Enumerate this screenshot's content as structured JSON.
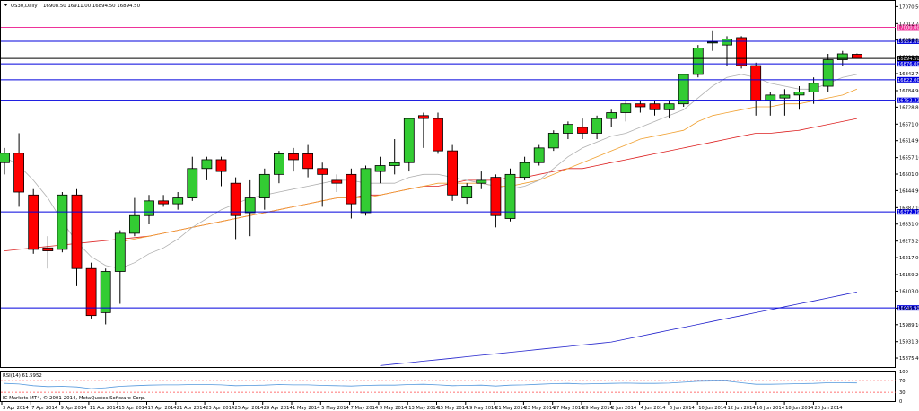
{
  "header": {
    "symbol_text": "US30,Daily",
    "ohlc_text": "16908.50 16911.00 16894.50 16894.50"
  },
  "rsi_panel": {
    "label": "RSI(14) 61.5952",
    "levels": [
      100,
      70,
      30,
      0
    ],
    "level_labels": [
      "100",
      "70",
      "30",
      "0"
    ]
  },
  "footer": {
    "copyright": "IC Markets MT4, © 2001-2014, MetaQuotes Software Corp."
  },
  "colors": {
    "bull": "#33cc33",
    "bear": "#ff0000",
    "ma_fast": "#b0b0b0",
    "ma_mid": "#f0a030",
    "ma_slow": "#dd2222",
    "ma_long": "#2222cc",
    "hline_blue": "#0000dd",
    "hline_magenta": "#ee3399",
    "hline_black": "#000000",
    "rsi": "#5599dd",
    "rsi_level": "#ff4444"
  },
  "chart_data": {
    "type": "candlestick",
    "symbol": "US30",
    "timeframe": "Daily",
    "ylim": [
      15845,
      17090
    ],
    "y_ticks": [
      "17070.50",
      "17012.70",
      "16956.80",
      "16898.90",
      "16842.70",
      "16784.90",
      "16728.80",
      "16671.00",
      "16614.90",
      "16557.10",
      "16501.00",
      "16444.90",
      "16387.10",
      "16331.00",
      "16273.20",
      "16217.00",
      "16159.20",
      "16103.00",
      "16045.20",
      "15989.10",
      "15931.30",
      "15875.40"
    ],
    "x_labels": [
      "3 Apr 2014",
      "7 Apr 2014",
      "9 Apr 2014",
      "11 Apr 2014",
      "15 Apr 2014",
      "17 Apr 2014",
      "21 Apr 2014",
      "23 Apr 2014",
      "25 Apr 2014",
      "29 Apr 2014",
      "1 May 2014",
      "5 May 2014",
      "7 May 2014",
      "9 May 2014",
      "13 May 2014",
      "15 May 2014",
      "19 May 2014",
      "21 May 2014",
      "23 May 2014",
      "27 May 2014",
      "29 May 2014",
      "2 Jun 2014",
      "4 Jun 2014",
      "6 Jun 2014",
      "10 Jun 2014",
      "12 Jun 2014",
      "16 Jun 2014",
      "18 Jun 2014",
      "20 Jun 2014"
    ],
    "horizontal_lines": [
      {
        "price": 17000.0,
        "label": "17000.00",
        "color": "magenta"
      },
      {
        "price": 16952.86,
        "label": "16952.86",
        "color": "blue"
      },
      {
        "price": 16894.5,
        "label": "16894.50",
        "color": "black"
      },
      {
        "price": 16876.0,
        "label": "16876.00",
        "color": "blue"
      },
      {
        "price": 16822.0,
        "label": "16822.00",
        "color": "blue"
      },
      {
        "price": 16752.32,
        "label": "16752.32",
        "color": "blue"
      },
      {
        "price": 16372.39,
        "label": "16372.39",
        "color": "blue"
      },
      {
        "price": 16045.96,
        "label": "16045.96",
        "color": "blue"
      }
    ],
    "candles": [
      {
        "o": 16540,
        "h": 16590,
        "l": 16500,
        "c": 16572
      },
      {
        "o": 16572,
        "h": 16640,
        "l": 16390,
        "c": 16440
      },
      {
        "o": 16430,
        "h": 16450,
        "l": 16230,
        "c": 16245
      },
      {
        "o": 16250,
        "h": 16290,
        "l": 16180,
        "c": 16240
      },
      {
        "o": 16245,
        "h": 16440,
        "l": 16235,
        "c": 16430
      },
      {
        "o": 16430,
        "h": 16450,
        "l": 16120,
        "c": 16180
      },
      {
        "o": 16180,
        "h": 16200,
        "l": 16010,
        "c": 16020
      },
      {
        "o": 16030,
        "h": 16180,
        "l": 15990,
        "c": 16170
      },
      {
        "o": 16170,
        "h": 16310,
        "l": 16060,
        "c": 16300
      },
      {
        "o": 16300,
        "h": 16420,
        "l": 16290,
        "c": 16360
      },
      {
        "o": 16360,
        "h": 16430,
        "l": 16330,
        "c": 16410
      },
      {
        "o": 16410,
        "h": 16430,
        "l": 16390,
        "c": 16400
      },
      {
        "o": 16400,
        "h": 16440,
        "l": 16380,
        "c": 16420
      },
      {
        "o": 16420,
        "h": 16560,
        "l": 16410,
        "c": 16520
      },
      {
        "o": 16520,
        "h": 16560,
        "l": 16480,
        "c": 16550
      },
      {
        "o": 16550,
        "h": 16560,
        "l": 16460,
        "c": 16510
      },
      {
        "o": 16470,
        "h": 16490,
        "l": 16280,
        "c": 16360
      },
      {
        "o": 16370,
        "h": 16480,
        "l": 16290,
        "c": 16420
      },
      {
        "o": 16420,
        "h": 16520,
        "l": 16380,
        "c": 16500
      },
      {
        "o": 16500,
        "h": 16580,
        "l": 16470,
        "c": 16570
      },
      {
        "o": 16570,
        "h": 16590,
        "l": 16510,
        "c": 16550
      },
      {
        "o": 16570,
        "h": 16600,
        "l": 16490,
        "c": 16520
      },
      {
        "o": 16520,
        "h": 16540,
        "l": 16390,
        "c": 16500
      },
      {
        "o": 16480,
        "h": 16500,
        "l": 16440,
        "c": 16470
      },
      {
        "o": 16500,
        "h": 16520,
        "l": 16350,
        "c": 16400
      },
      {
        "o": 16370,
        "h": 16530,
        "l": 16360,
        "c": 16520
      },
      {
        "o": 16510,
        "h": 16560,
        "l": 16470,
        "c": 16530
      },
      {
        "o": 16530,
        "h": 16620,
        "l": 16500,
        "c": 16540
      },
      {
        "o": 16540,
        "h": 16690,
        "l": 16510,
        "c": 16690
      },
      {
        "o": 16700,
        "h": 16710,
        "l": 16590,
        "c": 16690
      },
      {
        "o": 16690,
        "h": 16710,
        "l": 16570,
        "c": 16580
      },
      {
        "o": 16580,
        "h": 16600,
        "l": 16410,
        "c": 16430
      },
      {
        "o": 16420,
        "h": 16470,
        "l": 16400,
        "c": 16460
      },
      {
        "o": 16470,
        "h": 16510,
        "l": 16450,
        "c": 16480
      },
      {
        "o": 16490,
        "h": 16500,
        "l": 16320,
        "c": 16360
      },
      {
        "o": 16350,
        "h": 16520,
        "l": 16340,
        "c": 16500
      },
      {
        "o": 16490,
        "h": 16560,
        "l": 16480,
        "c": 16540
      },
      {
        "o": 16540,
        "h": 16600,
        "l": 16530,
        "c": 16590
      },
      {
        "o": 16590,
        "h": 16650,
        "l": 16580,
        "c": 16640
      },
      {
        "o": 16640,
        "h": 16680,
        "l": 16620,
        "c": 16670
      },
      {
        "o": 16660,
        "h": 16690,
        "l": 16620,
        "c": 16640
      },
      {
        "o": 16640,
        "h": 16700,
        "l": 16620,
        "c": 16690
      },
      {
        "o": 16690,
        "h": 16720,
        "l": 16660,
        "c": 16710
      },
      {
        "o": 16710,
        "h": 16750,
        "l": 16680,
        "c": 16740
      },
      {
        "o": 16740,
        "h": 16750,
        "l": 16710,
        "c": 16730
      },
      {
        "o": 16740,
        "h": 16750,
        "l": 16700,
        "c": 16720
      },
      {
        "o": 16720,
        "h": 16750,
        "l": 16690,
        "c": 16740
      },
      {
        "o": 16740,
        "h": 16840,
        "l": 16730,
        "c": 16840
      },
      {
        "o": 16840,
        "h": 16940,
        "l": 16830,
        "c": 16930
      },
      {
        "o": 16950,
        "h": 16990,
        "l": 16920,
        "c": 16950
      },
      {
        "o": 16940,
        "h": 16970,
        "l": 16870,
        "c": 16960
      },
      {
        "o": 16965,
        "h": 16970,
        "l": 16860,
        "c": 16870
      },
      {
        "o": 16870,
        "h": 16880,
        "l": 16700,
        "c": 16750
      },
      {
        "o": 16750,
        "h": 16780,
        "l": 16700,
        "c": 16770
      },
      {
        "o": 16760,
        "h": 16790,
        "l": 16700,
        "c": 16770
      },
      {
        "o": 16770,
        "h": 16800,
        "l": 16720,
        "c": 16780
      },
      {
        "o": 16780,
        "h": 16830,
        "l": 16740,
        "c": 16810
      },
      {
        "o": 16800,
        "h": 16910,
        "l": 16780,
        "c": 16890
      },
      {
        "o": 16890,
        "h": 16920,
        "l": 16870,
        "c": 16910
      },
      {
        "o": 16908.5,
        "h": 16911,
        "l": 16894.5,
        "c": 16894.5
      }
    ],
    "ma_fast": [
      16560,
      16530,
      16480,
      16420,
      16340,
      16270,
      16220,
      16190,
      16180,
      16200,
      16230,
      16250,
      16280,
      16320,
      16350,
      16380,
      16400,
      16420,
      16430,
      16440,
      16450,
      16460,
      16470,
      16480,
      16480,
      16470,
      16470,
      16470,
      16490,
      16500,
      16500,
      16490,
      16480,
      16470,
      16460,
      16450,
      16460,
      16480,
      16520,
      16560,
      16590,
      16610,
      16630,
      16640,
      16660,
      16680,
      16700,
      16720,
      16760,
      16800,
      16830,
      16840,
      16830,
      16810,
      16800,
      16790,
      16790,
      16810,
      16830,
      16840
    ],
    "ma_mid": [
      null,
      null,
      null,
      null,
      null,
      null,
      null,
      null,
      16270,
      16280,
      16290,
      16300,
      16310,
      16320,
      16330,
      16340,
      16350,
      16360,
      16370,
      16380,
      16390,
      16400,
      16410,
      16420,
      16420,
      16420,
      16430,
      16440,
      16450,
      16460,
      16470,
      16470,
      16470,
      16470,
      16460,
      16460,
      16470,
      16480,
      16500,
      16520,
      16540,
      16560,
      16580,
      16600,
      16620,
      16630,
      16640,
      16650,
      16680,
      16700,
      16710,
      16720,
      16730,
      16730,
      16740,
      16740,
      16750,
      16760,
      16770,
      16790
    ],
    "ma_slow": [
      16240,
      16245,
      16250,
      16255,
      16260,
      16265,
      16270,
      16275,
      16280,
      16285,
      16290,
      16300,
      16310,
      16320,
      16330,
      16340,
      16350,
      16360,
      16370,
      16380,
      16390,
      16400,
      16410,
      16420,
      16420,
      16430,
      16430,
      16440,
      16450,
      16460,
      16460,
      16470,
      16480,
      16480,
      16480,
      16490,
      16490,
      16500,
      16510,
      16520,
      16520,
      16530,
      16540,
      16550,
      16560,
      16570,
      16580,
      16590,
      16600,
      16610,
      16620,
      16630,
      16640,
      16640,
      16645,
      16650,
      16660,
      16670,
      16680,
      16690
    ],
    "ma_long": [
      null,
      null,
      null,
      null,
      null,
      null,
      null,
      null,
      null,
      null,
      null,
      null,
      null,
      null,
      null,
      null,
      null,
      null,
      null,
      null,
      null,
      null,
      null,
      null,
      null,
      null,
      15850,
      15855,
      15860,
      15865,
      15870,
      15875,
      15880,
      15885,
      15890,
      15895,
      15900,
      15905,
      15910,
      15915,
      15920,
      15925,
      15930,
      15940,
      15950,
      15960,
      15970,
      15980,
      15990,
      16000,
      16010,
      16020,
      16030,
      16040,
      16050,
      16060,
      16070,
      16080,
      16090,
      16100
    ],
    "rsi": [
      60,
      58,
      52,
      49,
      50,
      48,
      42,
      45,
      50,
      52,
      54,
      55,
      55,
      56,
      56,
      55,
      52,
      53,
      54,
      56,
      55,
      55,
      53,
      52,
      51,
      53,
      54,
      54,
      56,
      57,
      55,
      52,
      53,
      54,
      51,
      54,
      55,
      57,
      59,
      60,
      58,
      59,
      60,
      61,
      60,
      60,
      61,
      64,
      67,
      68,
      68,
      62,
      57,
      57,
      58,
      59,
      60,
      62,
      62,
      61.6
    ]
  }
}
